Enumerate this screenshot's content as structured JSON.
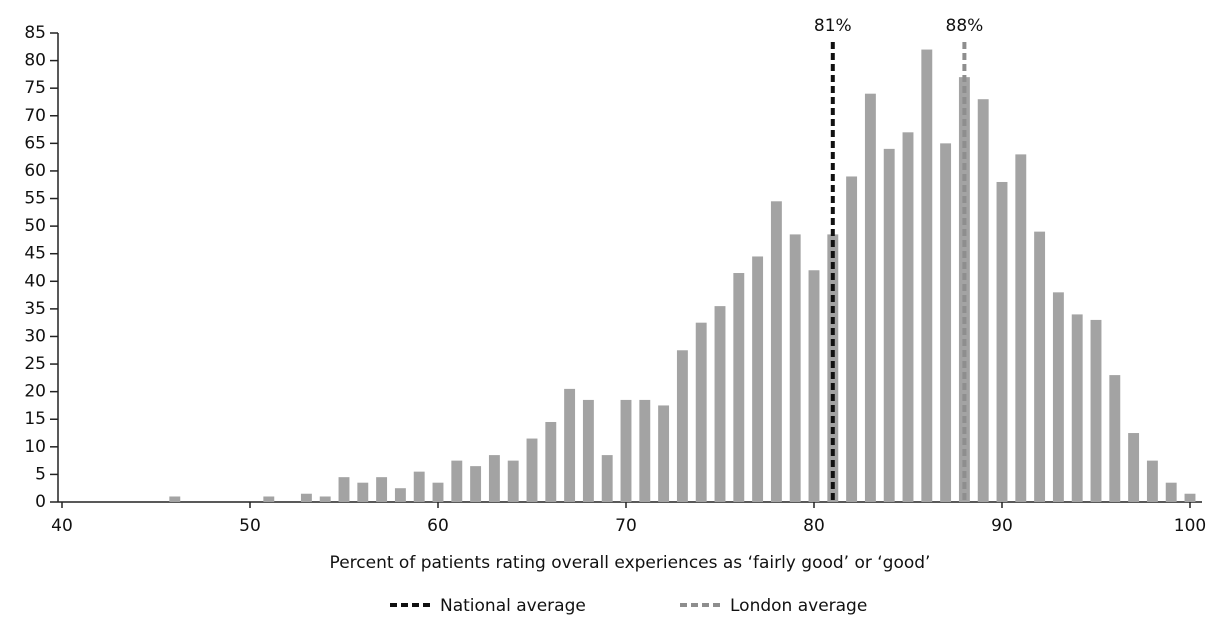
{
  "chart_data": {
    "type": "bar",
    "xlabel": "Percent of patients rating overall experiences as ‘fairly good’ or ‘good’",
    "x": [
      46,
      47,
      48,
      49,
      50,
      51,
      52,
      53,
      54,
      55,
      56,
      57,
      58,
      59,
      60,
      61,
      62,
      63,
      64,
      65,
      66,
      67,
      68,
      69,
      70,
      71,
      72,
      73,
      74,
      75,
      76,
      77,
      78,
      79,
      80,
      81,
      82,
      83,
      84,
      85,
      86,
      87,
      88,
      89,
      90,
      91,
      92,
      93,
      94,
      95,
      96,
      97,
      98,
      99,
      100
    ],
    "values": [
      1,
      0,
      0,
      0,
      0,
      1,
      0,
      1.5,
      1,
      4.5,
      3.5,
      4.5,
      2.5,
      5.5,
      3.5,
      7.5,
      6.5,
      8.5,
      7.5,
      11.5,
      14.5,
      20.5,
      18.5,
      8.5,
      18.5,
      18.5,
      17.5,
      27.5,
      32.5,
      35.5,
      41.5,
      44.5,
      54.5,
      48.5,
      42,
      48.5,
      59,
      74,
      64,
      67,
      82,
      65,
      77,
      73,
      58,
      63,
      49,
      38,
      34,
      33,
      23,
      12.5,
      7.5,
      3.5,
      1.5
    ],
    "color": "#a3a3a3",
    "xlim": [
      40,
      100
    ],
    "ylim": [
      0,
      85
    ],
    "xticks": [
      40,
      50,
      60,
      70,
      80,
      90,
      100
    ],
    "yticks": [
      0,
      5,
      10,
      15,
      20,
      25,
      30,
      35,
      40,
      45,
      50,
      55,
      60,
      65,
      70,
      75,
      80,
      85
    ],
    "reference_lines": [
      {
        "name": "National average",
        "x": 81,
        "label": "81%",
        "color": "#111111"
      },
      {
        "name": "London average",
        "x": 88,
        "label": "88%",
        "color": "#8e8e8e"
      }
    ]
  }
}
